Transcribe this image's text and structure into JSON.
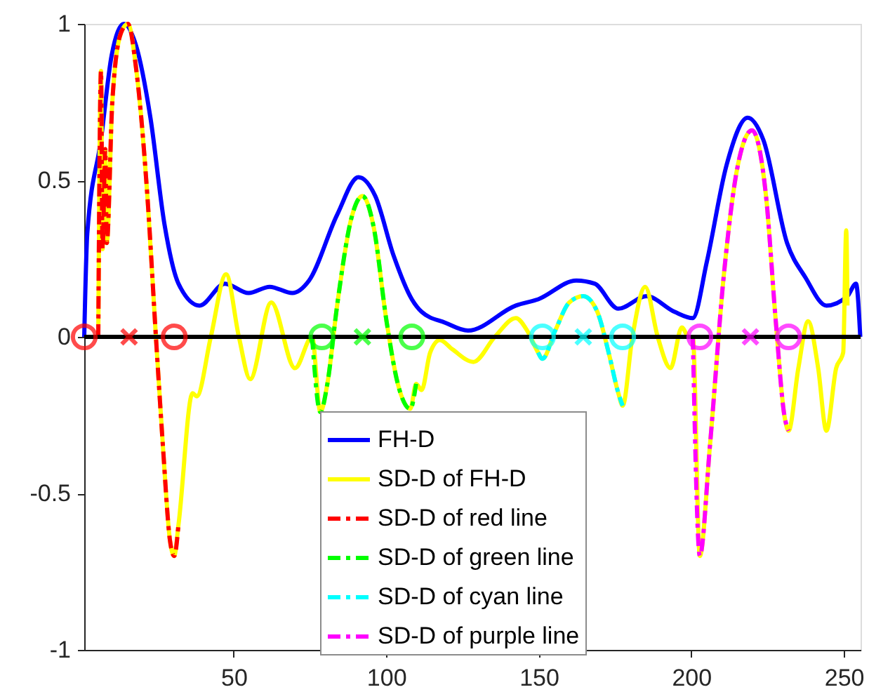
{
  "chart_data": {
    "type": "line",
    "xlim": [
      1,
      255.5
    ],
    "ylim": [
      -1,
      1
    ],
    "xticks": [
      50,
      100,
      150,
      200,
      250
    ],
    "yticks": [
      -1,
      -0.5,
      0,
      0.5,
      1
    ],
    "grid": false,
    "legend": "bottom",
    "ref_lines": [
      {
        "axis": "y",
        "value": 0,
        "color": "#000000"
      }
    ],
    "series": [
      {
        "name": "FH-D",
        "type": "line",
        "color": "#0000ff",
        "line_style": "solid",
        "x": [
          1,
          2,
          6.5,
          10,
          14,
          18,
          22.7,
          27.3,
          31.9,
          38.8,
          47.1,
          54.9,
          61.8,
          69.2,
          74.7,
          83.9,
          90.9,
          96.4,
          102.4,
          108.4,
          111.6,
          119.4,
          126.8,
          142.5,
          149.8,
          162.3,
          168.3,
          176.1,
          185.3,
          194.5,
          200.5,
          205.1,
          211.6,
          218.5,
          223.6,
          231.4,
          237.4,
          244.3,
          251.2,
          254,
          255.4
        ],
        "values": [
          0,
          0.33,
          0.63,
          0.9,
          1.0,
          0.93,
          0.7,
          0.36,
          0.17,
          0.1,
          0.17,
          0.14,
          0.16,
          0.14,
          0.18,
          0.39,
          0.51,
          0.45,
          0.26,
          0.12,
          0.08,
          0.045,
          0.02,
          0.1,
          0.12,
          0.18,
          0.17,
          0.09,
          0.13,
          0.08,
          0.06,
          0.24,
          0.55,
          0.7,
          0.63,
          0.3,
          0.19,
          0.1,
          0.13,
          0.17,
          0
        ]
      },
      {
        "name": "SD-D of FH-D",
        "type": "line",
        "color": "#ffff00",
        "line_style": "solid",
        "x": [
          5.6,
          6.5,
          7.0,
          7.9,
          8.4,
          10.2,
          13.0,
          15.3,
          18.1,
          21.7,
          24.5,
          26.8,
          29.1,
          30.5,
          31.9,
          36.5,
          37.9,
          42.5,
          47.5,
          51.7,
          55.4,
          62.3,
          70.1,
          75.7,
          78.4,
          80.7,
          83.9,
          88.6,
          92.2,
          95.9,
          100.1,
          103.8,
          107.9,
          109.8,
          111.6,
          114.4,
          117.6,
          121.7,
          128.6,
          135.6,
          142.5,
          146.2,
          149.8,
          151.2,
          155.4,
          160.0,
          164.6,
          169.2,
          172.9,
          176.1,
          177.5,
          180.7,
          184.9,
          189.0,
          193.2,
          196.9,
          199.2,
          200.5,
          202.8,
          206.1,
          210.7,
          215.3,
          219.9,
          224.5,
          227.7,
          230.5,
          231.9,
          235.1,
          238.3,
          241.6,
          244.3,
          247.5,
          249.8,
          250.8,
          251.2
        ],
        "values": [
          0,
          0.85,
          0.28,
          0.6,
          0.3,
          0.75,
          0.97,
          1.0,
          0.85,
          0.45,
          0,
          -0.35,
          -0.65,
          -0.7,
          -0.6,
          -0.18,
          -0.19,
          0,
          0.2,
          0,
          -0.135,
          0.11,
          -0.1,
          0,
          -0.24,
          -0.15,
          0.1,
          0.38,
          0.45,
          0.35,
          0.05,
          -0.15,
          -0.23,
          -0.15,
          -0.17,
          -0.05,
          -0.01,
          -0.04,
          -0.08,
          0,
          0.06,
          0.02,
          -0.05,
          -0.07,
          0.02,
          0.11,
          0.13,
          0.08,
          -0.05,
          -0.18,
          -0.22,
          0,
          0.16,
          0,
          -0.1,
          0.03,
          0,
          0,
          -0.7,
          -0.35,
          0.2,
          0.55,
          0.66,
          0.45,
          0.05,
          -0.25,
          -0.3,
          -0.1,
          0.05,
          -0.1,
          -0.3,
          -0.1,
          -0.05,
          0.34,
          0.1
        ]
      },
      {
        "name": "SD-D of red line",
        "type": "line",
        "color": "#ff0000",
        "line_style": "dashed",
        "x": [
          5.6,
          6.5,
          7.0,
          7.9,
          8.4,
          10.2,
          13.0,
          15.3,
          18.1,
          21.7,
          24.5,
          26.8,
          29.1,
          30.5,
          31.9
        ],
        "values": [
          0,
          0.85,
          0.28,
          0.6,
          0.3,
          0.75,
          0.97,
          1.0,
          0.85,
          0.45,
          0,
          -0.35,
          -0.65,
          -0.7,
          -0.6
        ]
      },
      {
        "name": "SD-D of green line",
        "type": "line",
        "color": "#00ff00",
        "line_style": "dashed",
        "x": [
          75.7,
          78.4,
          80.7,
          83.9,
          88.6,
          92.2,
          95.9,
          100.1,
          103.8,
          107.9,
          109.8
        ],
        "values": [
          0,
          -0.24,
          -0.15,
          0.1,
          0.38,
          0.45,
          0.35,
          0.05,
          -0.15,
          -0.23,
          -0.15
        ]
      },
      {
        "name": "SD-D of cyan line",
        "type": "line",
        "color": "#00ffff",
        "line_style": "dashed",
        "x": [
          149.8,
          151.2,
          155.4,
          160.0,
          164.6,
          169.2,
          172.9,
          176.1,
          177.5
        ],
        "values": [
          -0.05,
          -0.07,
          0.02,
          0.11,
          0.13,
          0.08,
          -0.05,
          -0.18,
          -0.22
        ]
      },
      {
        "name": "SD-D of purple line",
        "type": "line",
        "color": "#ff00ff",
        "line_style": "dashed",
        "x": [
          200.5,
          202.8,
          206.1,
          210.7,
          215.3,
          219.9,
          224.5,
          227.7,
          230.5,
          231.9
        ],
        "values": [
          0,
          -0.7,
          -0.35,
          0.2,
          0.55,
          0.66,
          0.45,
          0.05,
          -0.25,
          -0.3
        ]
      },
      {
        "type": "scatter",
        "marker": "circle",
        "color": "#ff0000",
        "x": [
          1,
          30.5
        ],
        "values": [
          0,
          0
        ]
      },
      {
        "type": "scatter",
        "marker": "cross",
        "color": "#ff0000",
        "x": [
          15.7
        ],
        "values": [
          0
        ]
      },
      {
        "type": "scatter",
        "marker": "circle",
        "color": "#00ff00",
        "x": [
          78.9,
          108.4
        ],
        "values": [
          0,
          0
        ]
      },
      {
        "type": "scatter",
        "marker": "cross",
        "color": "#00ff00",
        "x": [
          92.2
        ],
        "values": [
          0
        ]
      },
      {
        "type": "scatter",
        "marker": "circle",
        "color": "#00ffff",
        "x": [
          151.2,
          177.5
        ],
        "values": [
          0,
          0
        ]
      },
      {
        "type": "scatter",
        "marker": "cross",
        "color": "#00ffff",
        "x": [
          164.6
        ],
        "values": [
          0
        ]
      },
      {
        "type": "scatter",
        "marker": "circle",
        "color": "#ff00ff",
        "x": [
          202.8,
          231.9
        ],
        "values": [
          0,
          0
        ]
      },
      {
        "type": "scatter",
        "marker": "cross",
        "color": "#ff00ff",
        "x": [
          219.4
        ],
        "values": [
          0
        ]
      }
    ]
  }
}
